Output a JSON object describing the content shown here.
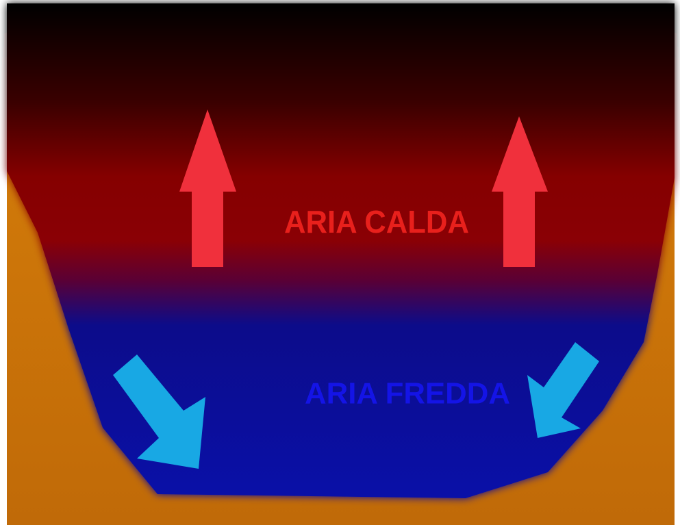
{
  "labels": {
    "warm_air": "ARIA CALDA",
    "cold_air": "ARIA FREDDA"
  }
}
